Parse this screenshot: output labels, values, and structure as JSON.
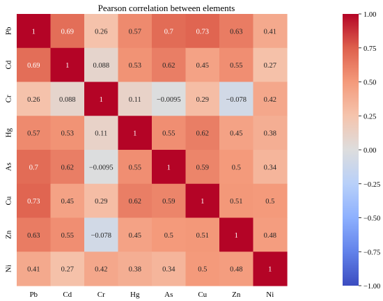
{
  "chart_data": {
    "type": "heatmap",
    "title": "Pearson correlation between elements",
    "x_labels": [
      "Pb",
      "Cd",
      "Cr",
      "Hg",
      "As",
      "Cu",
      "Zn",
      "Ni"
    ],
    "y_labels": [
      "Pb",
      "Cd",
      "Cr",
      "Hg",
      "As",
      "Cu",
      "Zn",
      "Ni"
    ],
    "values": [
      [
        1,
        0.69,
        0.26,
        0.57,
        0.7,
        0.73,
        0.63,
        0.41
      ],
      [
        0.69,
        1,
        0.088,
        0.53,
        0.62,
        0.45,
        0.55,
        0.27
      ],
      [
        0.26,
        0.088,
        1,
        0.11,
        -0.0095,
        0.29,
        -0.078,
        0.42
      ],
      [
        0.57,
        0.53,
        0.11,
        1,
        0.55,
        0.62,
        0.45,
        0.38
      ],
      [
        0.7,
        0.62,
        -0.0095,
        0.55,
        1,
        0.59,
        0.5,
        0.34
      ],
      [
        0.73,
        0.45,
        0.29,
        0.62,
        0.59,
        1,
        0.51,
        0.5
      ],
      [
        0.63,
        0.55,
        -0.078,
        0.45,
        0.5,
        0.51,
        1,
        0.48
      ],
      [
        0.41,
        0.27,
        0.42,
        0.38,
        0.34,
        0.5,
        0.48,
        1
      ]
    ],
    "cell_labels": [
      [
        "1",
        "0.69",
        "0.26",
        "0.57",
        "0.7",
        "0.73",
        "0.63",
        "0.41"
      ],
      [
        "0.69",
        "1",
        "0.088",
        "0.53",
        "0.62",
        "0.45",
        "0.55",
        "0.27"
      ],
      [
        "0.26",
        "0.088",
        "1",
        "0.11",
        "−0.0095",
        "0.29",
        "−0.078",
        "0.42"
      ],
      [
        "0.57",
        "0.53",
        "0.11",
        "1",
        "0.55",
        "0.62",
        "0.45",
        "0.38"
      ],
      [
        "0.7",
        "0.62",
        "−0.0095",
        "0.55",
        "1",
        "0.59",
        "0.5",
        "0.34"
      ],
      [
        "0.73",
        "0.45",
        "0.29",
        "0.62",
        "0.59",
        "1",
        "0.51",
        "0.5"
      ],
      [
        "0.63",
        "0.55",
        "−0.078",
        "0.45",
        "0.5",
        "0.51",
        "1",
        "0.48"
      ],
      [
        "0.41",
        "0.27",
        "0.42",
        "0.38",
        "0.34",
        "0.5",
        "0.48",
        "1"
      ]
    ],
    "colormap": "coolwarm",
    "vmin": -1.0,
    "vmax": 1.0,
    "colorbar_ticks": [
      1.0,
      0.75,
      0.5,
      0.25,
      0.0,
      -0.25,
      -0.5,
      -0.75,
      -1.0
    ],
    "colorbar_tick_labels": [
      "1.00",
      "0.75",
      "0.50",
      "0.25",
      "0.00",
      "−0.25",
      "−0.50",
      "−0.75",
      "−1.00"
    ],
    "colors": {
      "high": "#b40426",
      "mid": "#dddddd",
      "low": "#3b4cc0"
    }
  }
}
